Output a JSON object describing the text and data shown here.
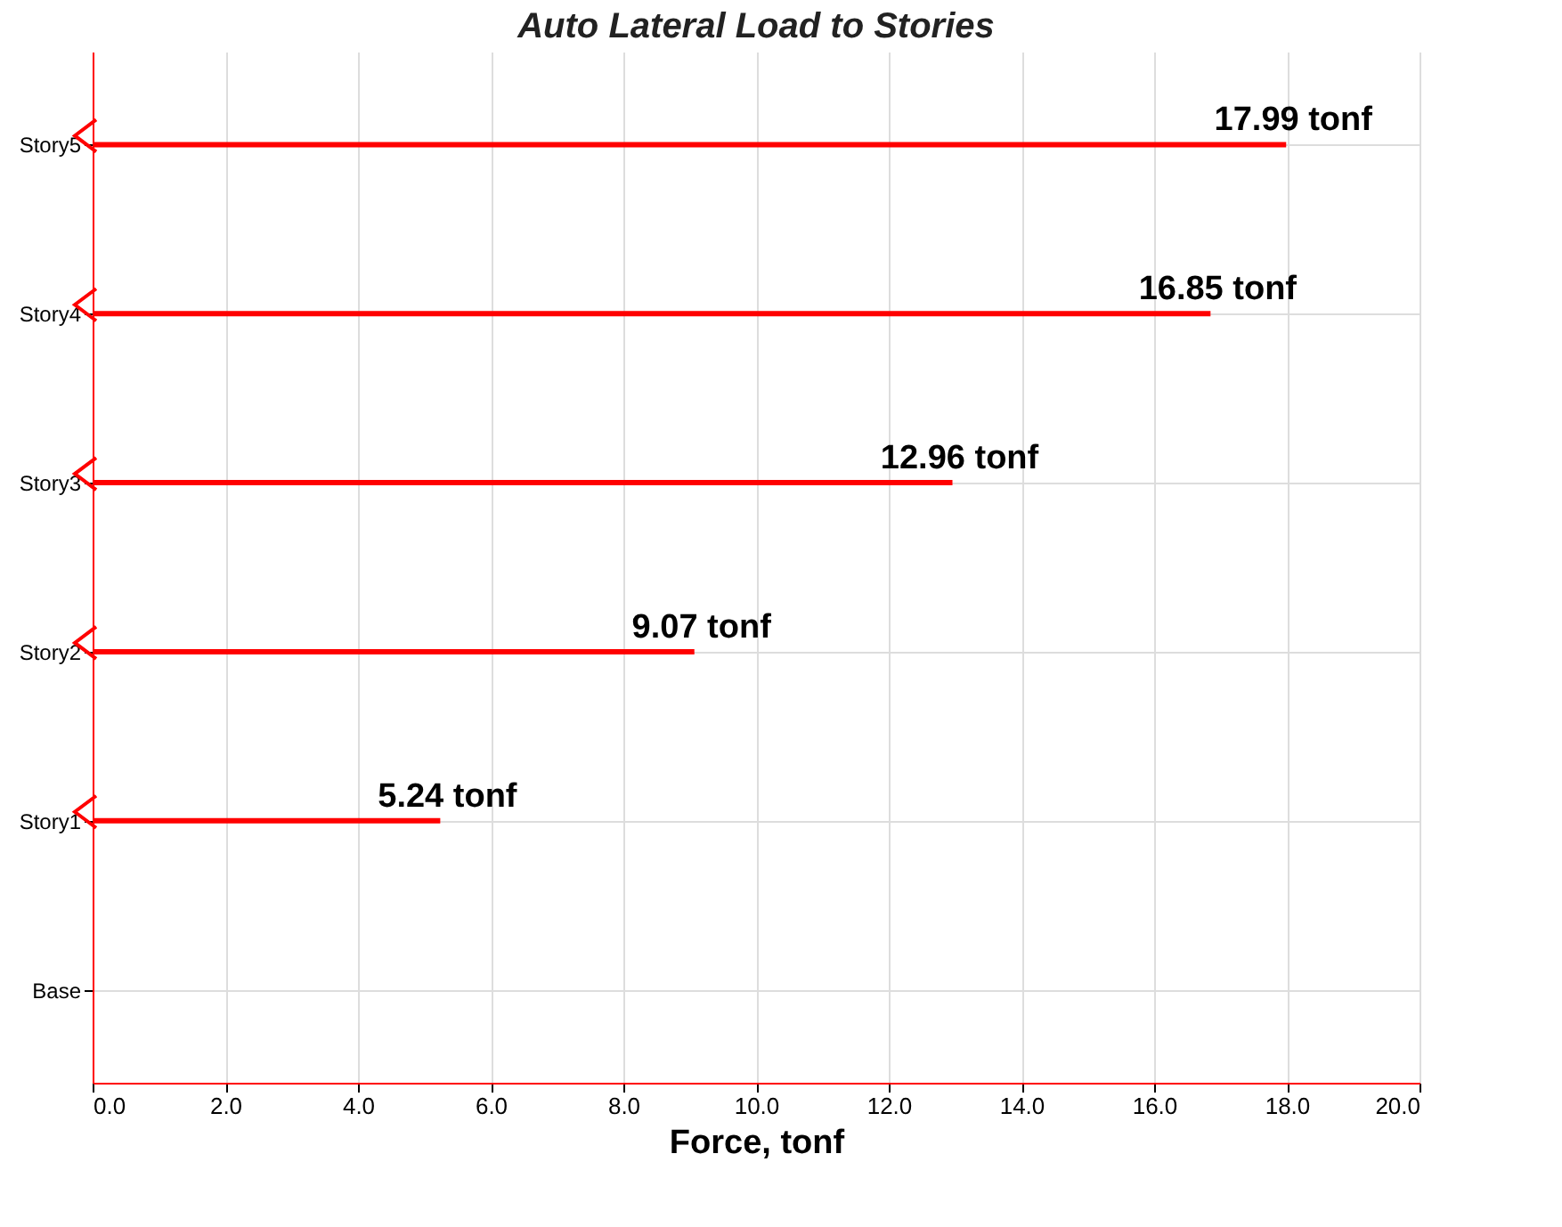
{
  "chart_data": {
    "type": "bar",
    "orientation": "horizontal",
    "title": "Auto Lateral Load to Stories",
    "xlabel": "Force, tonf",
    "categories": [
      "Story5",
      "Story4",
      "Story3",
      "Story2",
      "Story1",
      "Base"
    ],
    "values": [
      17.99,
      16.85,
      12.96,
      9.07,
      5.24,
      null
    ],
    "value_labels": [
      "17.99 tonf",
      "16.85 tonf",
      "12.96 tonf",
      "9.07 tonf",
      "5.24 tonf",
      null
    ],
    "color": "#ff0000",
    "xlim": [
      0,
      20
    ],
    "xticks": [
      {
        "value": 0,
        "label": "0.0"
      },
      {
        "value": 2,
        "label": "2.0"
      },
      {
        "value": 4,
        "label": "4.0"
      },
      {
        "value": 6,
        "label": "6.0"
      },
      {
        "value": 8,
        "label": "8.0"
      },
      {
        "value": 10,
        "label": "10.0"
      },
      {
        "value": 12,
        "label": "12.0"
      },
      {
        "value": 14,
        "label": "14.0"
      },
      {
        "value": 16,
        "label": "16.0"
      },
      {
        "value": 18,
        "label": "18.0"
      },
      {
        "value": 20,
        "label": "20.0"
      }
    ],
    "grid": true
  }
}
